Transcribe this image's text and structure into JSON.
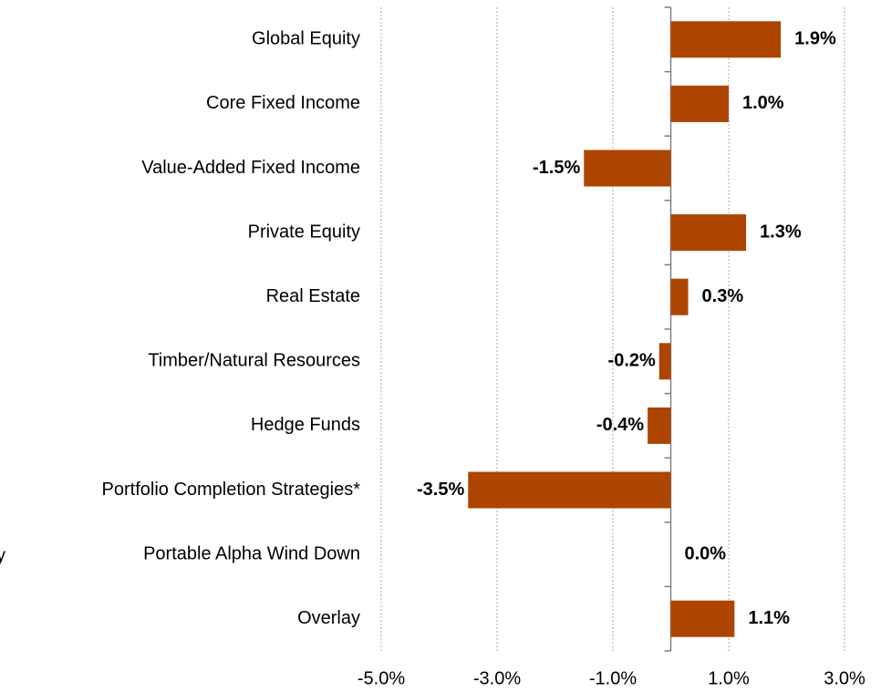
{
  "chart_data": {
    "type": "hbar",
    "categories": [
      "Global Equity",
      "Core Fixed Income",
      "Value-Added Fixed Income",
      "Private Equity",
      "Real Estate",
      "Timber/Natural Resources",
      "Hedge Funds",
      "Portfolio Completion Strategies*",
      "Portable Alpha Wind Down",
      "Overlay"
    ],
    "values": [
      1.9,
      1.0,
      -1.5,
      1.3,
      0.3,
      -0.2,
      -0.4,
      -3.5,
      0.0,
      1.1
    ],
    "value_labels": [
      "1.9%",
      "1.0%",
      "-1.5%",
      "1.3%",
      "0.3%",
      "-0.2%",
      "-0.4%",
      "-3.5%",
      "0.0%",
      "1.1%"
    ],
    "color": "#ad4500",
    "xlim": [
      -5,
      3
    ],
    "xticks": [
      {
        "value": -5,
        "label": "-5.0%"
      },
      {
        "value": -3,
        "label": "-3.0%"
      },
      {
        "value": -1,
        "label": "-1.0%"
      },
      {
        "value": 1,
        "label": "1.0%"
      },
      {
        "value": 3,
        "label": "3.0%"
      }
    ],
    "grid": true,
    "annotation": "y"
  }
}
